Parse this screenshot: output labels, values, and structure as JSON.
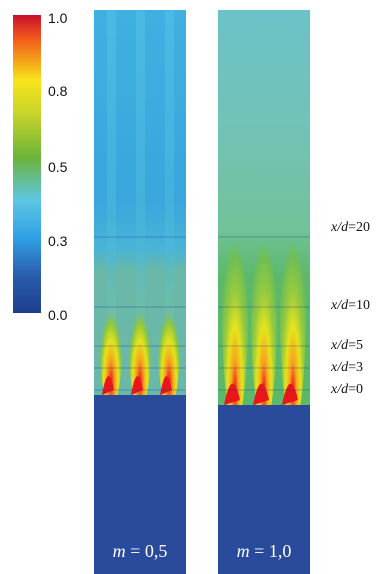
{
  "colorbar": {
    "ticks": [
      {
        "label": "1.0",
        "value": 1.0
      },
      {
        "label": "0.8",
        "value": 0.8
      },
      {
        "label": "0.5",
        "value": 0.5
      },
      {
        "label": "0.3",
        "value": 0.3
      },
      {
        "label": "0.0",
        "value": 0.0
      }
    ]
  },
  "panels": [
    {
      "var": "m",
      "eq": " = 0,5"
    },
    {
      "var": "m",
      "eq": " = 1,0"
    }
  ],
  "stations": [
    {
      "var": "x/d",
      "eq": "=20"
    },
    {
      "var": "x/d",
      "eq": "=10"
    },
    {
      "var": "x/d",
      "eq": "=5"
    },
    {
      "var": "x/d",
      "eq": "=3"
    },
    {
      "var": "x/d",
      "eq": "=0"
    }
  ]
}
